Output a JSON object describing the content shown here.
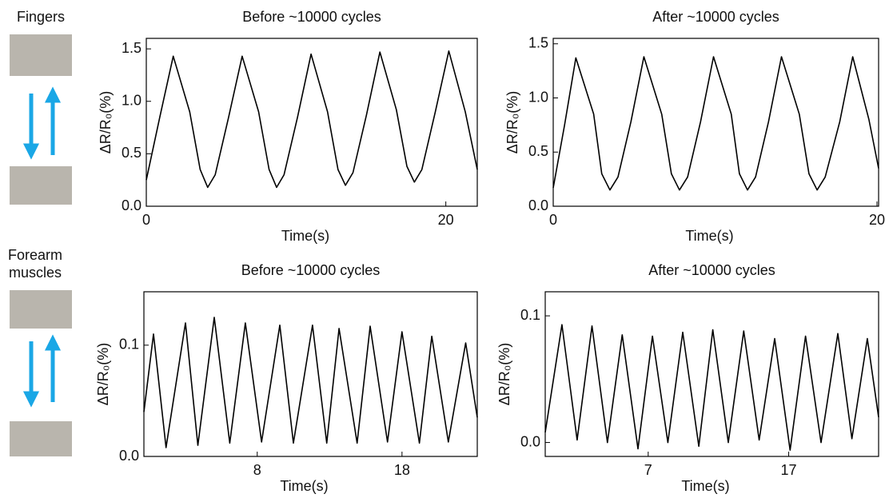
{
  "labels": [
    "Fingers",
    "Forearm muscles"
  ],
  "chart_data": [
    {
      "type": "line",
      "title": "Before ~10000 cycles",
      "x_label": "Time(s)",
      "y_label": "ΔR/R₀(%)",
      "x": [
        0,
        0.9,
        1.8,
        2.9,
        3.6,
        4.1,
        4.6,
        5.5,
        6.4,
        7.5,
        8.2,
        8.7,
        9.2,
        10.1,
        11.0,
        12.1,
        12.8,
        13.3,
        13.8,
        14.7,
        15.6,
        16.7,
        17.4,
        17.9,
        18.4,
        19.3,
        20.2,
        21.3,
        22.1
      ],
      "series": [
        {
          "color": "#000000",
          "values": [
            0.25,
            0.85,
            1.43,
            0.9,
            0.35,
            0.18,
            0.3,
            0.85,
            1.43,
            0.9,
            0.35,
            0.18,
            0.3,
            0.85,
            1.45,
            0.9,
            0.35,
            0.2,
            0.32,
            0.87,
            1.47,
            0.92,
            0.38,
            0.23,
            0.35,
            0.9,
            1.48,
            0.9,
            0.35
          ]
        }
      ],
      "xlim": [
        0,
        22.1
      ],
      "ylim": [
        0,
        1.6
      ],
      "xticks": [
        0,
        20
      ],
      "yticks": [
        {
          "value": 0,
          "label": "0.0"
        },
        {
          "value": 0.5,
          "label": "0.5"
        },
        {
          "value": 1,
          "label": "1.0"
        },
        {
          "value": 1.5,
          "label": "1.5"
        }
      ]
    },
    {
      "type": "line",
      "title": "After ~10000 cycles",
      "x_label": "Time(s)",
      "y_label": "ΔR/R₀(%)",
      "x": [
        0,
        0.7,
        1.4,
        2.5,
        3.0,
        3.5,
        4.0,
        4.8,
        5.6,
        6.7,
        7.3,
        7.8,
        8.3,
        9.1,
        9.9,
        11.0,
        11.5,
        12.0,
        12.5,
        13.3,
        14.1,
        15.2,
        15.8,
        16.3,
        16.8,
        17.7,
        18.5,
        19.5,
        20.1
      ],
      "series": [
        {
          "color": "#000000",
          "values": [
            0.17,
            0.75,
            1.37,
            0.85,
            0.3,
            0.15,
            0.27,
            0.78,
            1.38,
            0.85,
            0.3,
            0.15,
            0.27,
            0.78,
            1.38,
            0.85,
            0.3,
            0.15,
            0.27,
            0.78,
            1.38,
            0.85,
            0.3,
            0.15,
            0.27,
            0.78,
            1.38,
            0.8,
            0.35
          ]
        }
      ],
      "xlim": [
        0,
        20.1
      ],
      "ylim": [
        0,
        1.55
      ],
      "xticks": [
        0,
        20
      ],
      "yticks": [
        {
          "value": 0,
          "label": "0.0"
        },
        {
          "value": 0.5,
          "label": "0.5"
        },
        {
          "value": 1,
          "label": "1.0"
        },
        {
          "value": 1.5,
          "label": "1.5"
        }
      ]
    },
    {
      "type": "line",
      "title": "Before ~10000 cycles",
      "x_label": "Time(s)",
      "y_label": "ΔR/R₀(%)",
      "x": [
        0.17,
        0.83,
        1.7,
        3.04,
        3.9,
        5.03,
        6.1,
        7.18,
        8.3,
        9.56,
        10.5,
        11.82,
        12.8,
        13.65,
        14.9,
        15.8,
        17.0,
        18.0,
        19.2,
        20.06,
        21.2,
        22.4,
        23.2
      ],
      "series": [
        {
          "color": "#000000",
          "values": [
            0.04,
            0.11,
            0.008,
            0.12,
            0.01,
            0.125,
            0.012,
            0.12,
            0.013,
            0.118,
            0.012,
            0.118,
            0.012,
            0.115,
            0.012,
            0.117,
            0.013,
            0.112,
            0.012,
            0.108,
            0.013,
            0.102,
            0.035
          ]
        }
      ],
      "xlim": [
        0.17,
        23.2
      ],
      "ylim": [
        0,
        0.148
      ],
      "xticks": [
        8,
        18
      ],
      "yticks": [
        {
          "value": 0,
          "label": "0.0"
        },
        0.1
      ]
    },
    {
      "type": "line",
      "title": "After ~10000 cycles",
      "x_label": "Time(s)",
      "y_label": "ΔR/R₀(%)",
      "x": [
        -0.33,
        0.86,
        1.94,
        3.0,
        4.1,
        5.15,
        6.27,
        7.3,
        8.4,
        9.46,
        10.6,
        11.6,
        12.7,
        13.8,
        14.9,
        16.0,
        17.1,
        18.2,
        19.3,
        20.5,
        21.5,
        22.6,
        23.4
      ],
      "series": [
        {
          "color": "#000000",
          "values": [
            0.008,
            0.093,
            0.002,
            0.092,
            0.0,
            0.085,
            -0.005,
            0.084,
            0.0,
            0.087,
            -0.003,
            0.089,
            0.0,
            0.088,
            0.002,
            0.082,
            -0.006,
            0.084,
            0.0,
            0.086,
            0.003,
            0.082,
            0.02
          ]
        }
      ],
      "xlim": [
        -0.33,
        23.4
      ],
      "ylim": [
        -0.011,
        0.119
      ],
      "xticks": [
        7,
        17
      ],
      "yticks": [
        {
          "value": 0,
          "label": "0.0"
        },
        0.1
      ]
    }
  ]
}
